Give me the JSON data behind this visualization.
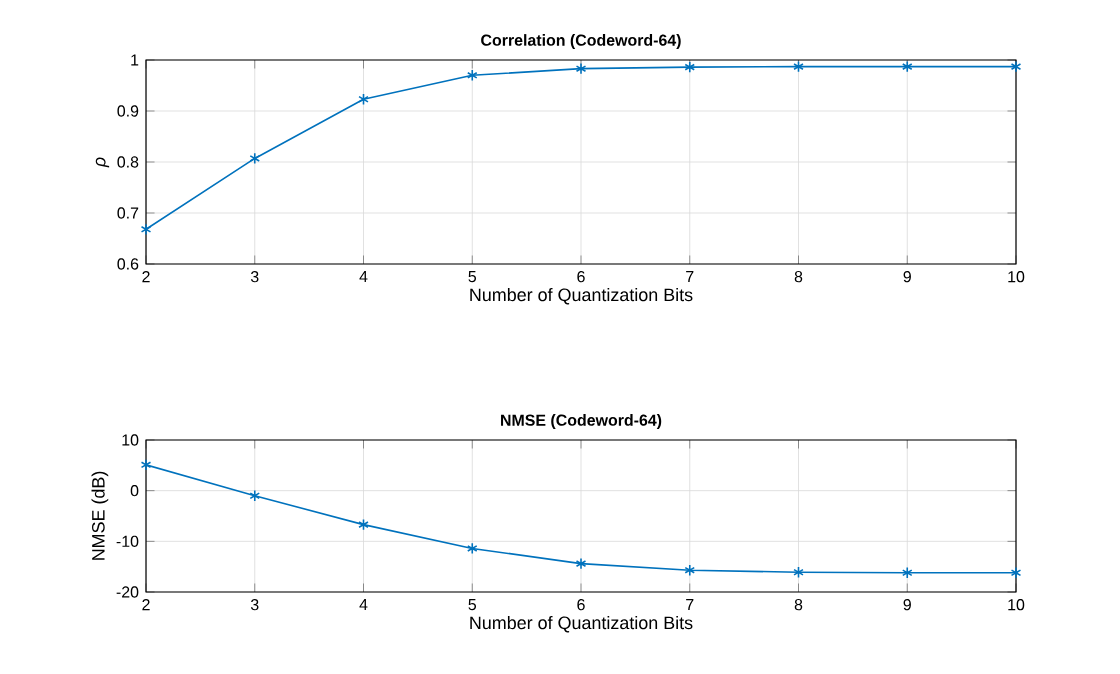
{
  "chart_data": [
    {
      "type": "line",
      "title": "Correlation (Codeword-64)",
      "xlabel": "Number of Quantization Bits",
      "ylabel": "ρ",
      "x": [
        2,
        3,
        4,
        5,
        6,
        7,
        8,
        9,
        10
      ],
      "series": [
        {
          "color": "#0072bd",
          "values": [
            0.668,
            0.807,
            0.923,
            0.97,
            0.983,
            0.986,
            0.987,
            0.987,
            0.987
          ]
        }
      ],
      "xlim": [
        2,
        10
      ],
      "xticks": [
        2,
        3,
        4,
        5,
        6,
        7,
        8,
        9,
        10
      ],
      "ylim": [
        0.6,
        1
      ],
      "yticks": [
        0.6,
        0.7,
        0.8,
        0.9,
        1
      ],
      "grid": true,
      "marker": "cross"
    },
    {
      "type": "line",
      "title": "NMSE (Codeword-64)",
      "xlabel": "Number of Quantization Bits",
      "ylabel": "NMSE (dB)",
      "x": [
        2,
        3,
        4,
        5,
        6,
        7,
        8,
        9,
        10
      ],
      "series": [
        {
          "color": "#0072bd",
          "values": [
            5.1,
            -1.0,
            -6.7,
            -11.4,
            -14.4,
            -15.7,
            -16.1,
            -16.2,
            -16.2
          ]
        }
      ],
      "xlim": [
        2,
        10
      ],
      "xticks": [
        2,
        3,
        4,
        5,
        6,
        7,
        8,
        9,
        10
      ],
      "ylim": [
        -20,
        10
      ],
      "yticks": [
        -20,
        -10,
        0,
        10
      ],
      "grid": true,
      "marker": "cross"
    }
  ]
}
